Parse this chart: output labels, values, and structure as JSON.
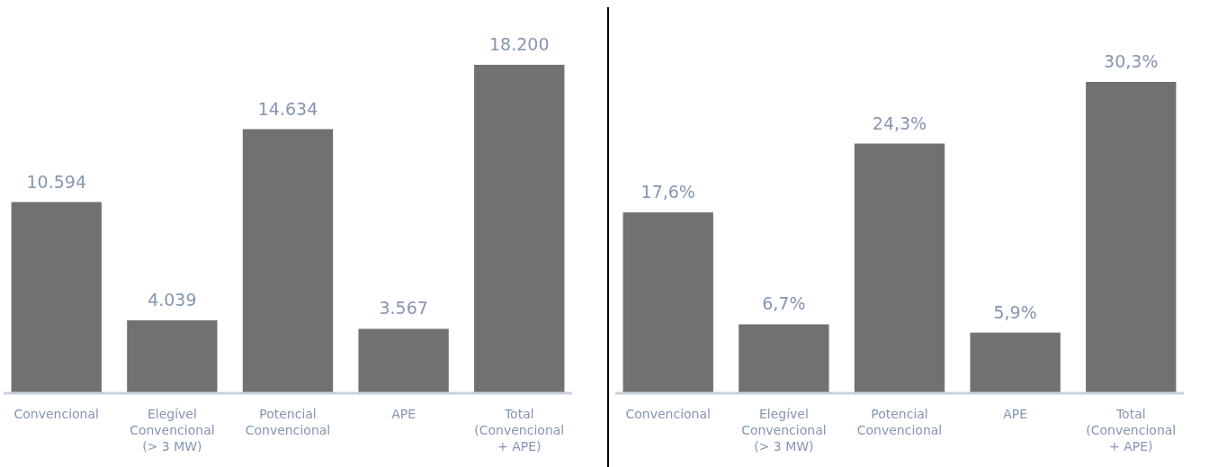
{
  "chart_data": [
    {
      "type": "bar",
      "categories": [
        "Convencional",
        "Elegível Convencional (> 3 MW)",
        "Potencial Convencional",
        "APE",
        "Total (Convencional + APE)"
      ],
      "values": [
        10594,
        4039,
        14634,
        3567,
        18200
      ],
      "value_labels": [
        "10.594",
        "4.039",
        "14.634",
        "3.567",
        "18.200"
      ],
      "color": "#717171",
      "tick_labels": "x"
    },
    {
      "type": "bar",
      "categories": [
        "Convencional",
        "Elegível Convencional (> 3 MW)",
        "Potencial Convencional",
        "APE",
        "Total (Convencional + APE)"
      ],
      "values": [
        17.6,
        6.7,
        24.3,
        5.9,
        30.3
      ],
      "value_labels": [
        "17,6%",
        "6,7%",
        "24,3%",
        "5,9%",
        "30,3%"
      ],
      "color": "#717171",
      "tick_labels": "x"
    }
  ]
}
